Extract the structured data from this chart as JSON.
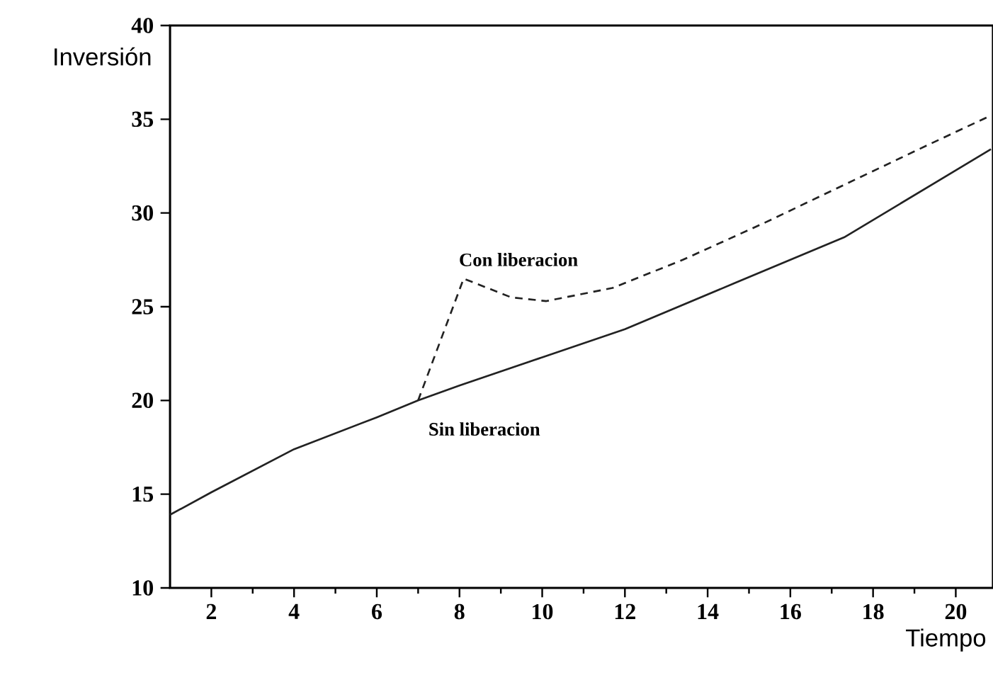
{
  "chart_data": {
    "type": "line",
    "xlabel": "Tiempo",
    "ylabel": "Inversión",
    "xlim": [
      1,
      20.9
    ],
    "ylim": [
      10,
      40
    ],
    "xticks": [
      2,
      4,
      6,
      8,
      10,
      12,
      14,
      16,
      18,
      20
    ],
    "yticks": [
      10,
      15,
      20,
      25,
      30,
      35,
      40
    ],
    "grid": false,
    "legend": false,
    "marker": "none",
    "series": [
      {
        "name": "Sin liberacion",
        "color": "#222222",
        "line_style": "solid",
        "x": [
          1,
          2,
          4,
          6,
          7,
          8,
          10,
          12,
          14.7,
          17.3,
          20.85
        ],
        "values": [
          13.9,
          15.1,
          17.4,
          19.1,
          20.0,
          20.8,
          22.3,
          23.8,
          26.3,
          28.7,
          33.4
        ]
      },
      {
        "name": "Con liberacion",
        "color": "#222222",
        "line_style": "dashed",
        "x": [
          7,
          8.1,
          9.25,
          10.1,
          11.7,
          13.4,
          15.4,
          17.3,
          19.3,
          20.85
        ],
        "values": [
          20.0,
          26.5,
          25.5,
          25.3,
          26.0,
          27.5,
          29.5,
          31.5,
          33.6,
          35.2
        ]
      }
    ]
  }
}
